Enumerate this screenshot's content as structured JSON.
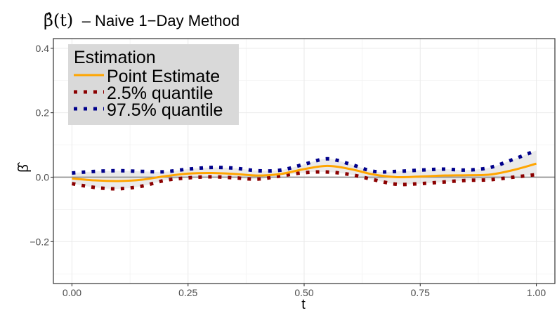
{
  "chart_data": {
    "type": "line",
    "title_symbol": "β̂(t)",
    "title_text": "– Naive 1−Day Method",
    "xlabel": "t",
    "ylabel": "β̂",
    "xlim": [
      -0.04,
      1.04
    ],
    "ylim": [
      -0.33,
      0.43
    ],
    "x_ticks": [
      0.0,
      0.25,
      0.5,
      0.75,
      1.0
    ],
    "x_tick_labels": [
      "0.00",
      "0.25",
      "0.50",
      "0.75",
      "1.00"
    ],
    "y_ticks": [
      -0.2,
      0.0,
      0.2,
      0.4
    ],
    "y_tick_labels": [
      "−0.2",
      "0.0",
      "0.2",
      "0.4"
    ],
    "reference_line_y": 0.0,
    "grid": true,
    "legend": {
      "title": "Estimation",
      "position": "top-left",
      "entries": [
        {
          "label": "Point Estimate",
          "color": "#FFA500",
          "style": "solid"
        },
        {
          "label": "2.5% quantile",
          "color": "#8B0000",
          "style": "dotted"
        },
        {
          "label": "97.5% quantile",
          "color": "#00008B",
          "style": "dotted"
        }
      ]
    },
    "x": [
      0.0,
      0.05,
      0.1,
      0.15,
      0.2,
      0.25,
      0.3,
      0.35,
      0.4,
      0.45,
      0.5,
      0.55,
      0.6,
      0.65,
      0.7,
      0.75,
      0.8,
      0.85,
      0.9,
      0.95,
      1.0
    ],
    "series": [
      {
        "name": "Point Estimate",
        "color": "#FFA500",
        "values": [
          -0.004,
          -0.01,
          -0.012,
          -0.008,
          0.003,
          0.011,
          0.013,
          0.01,
          0.005,
          0.01,
          0.025,
          0.035,
          0.025,
          0.008,
          0.0,
          0.002,
          0.005,
          0.006,
          0.008,
          0.022,
          0.042
        ]
      },
      {
        "name": "2.5% quantile",
        "color": "#8B0000",
        "values": [
          -0.02,
          -0.032,
          -0.036,
          -0.028,
          -0.01,
          -0.002,
          0.001,
          -0.002,
          -0.006,
          0.004,
          0.014,
          0.016,
          0.008,
          -0.008,
          -0.022,
          -0.02,
          -0.015,
          -0.01,
          -0.008,
          0.0,
          0.008
        ]
      },
      {
        "name": "97.5% quantile",
        "color": "#00008B",
        "values": [
          0.013,
          0.018,
          0.02,
          0.018,
          0.017,
          0.025,
          0.03,
          0.028,
          0.02,
          0.022,
          0.04,
          0.057,
          0.04,
          0.018,
          0.018,
          0.022,
          0.025,
          0.022,
          0.03,
          0.055,
          0.083
        ]
      }
    ]
  }
}
